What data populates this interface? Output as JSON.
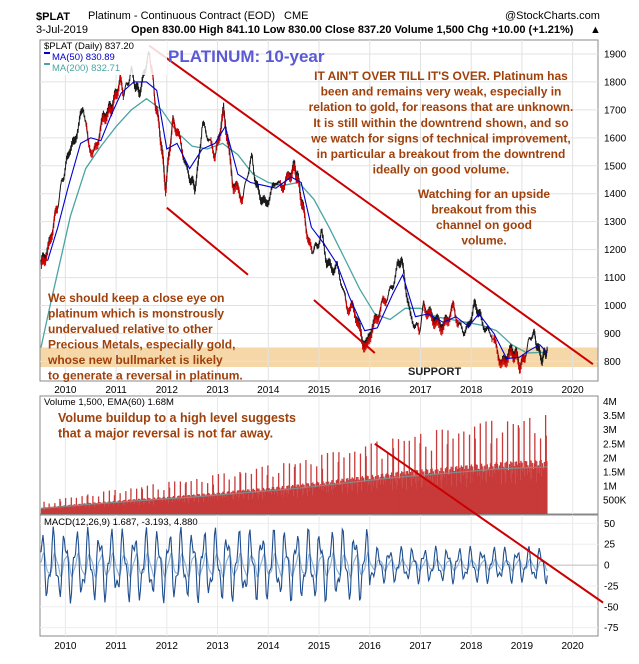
{
  "header": {
    "ticker": "$PLAT",
    "name": "Platinum - Continuous Contract (EOD)",
    "exchange": "CME",
    "watermark": "@StockCharts.com",
    "date": "3-Jul-2019",
    "quote_line": "Open 830.00  High 841.10  Low 830.00  Close 837.20  Volume 1,500  Chg +10.00 (+1.21%)",
    "up_arrow": "▲"
  },
  "price_panel": {
    "legend": [
      "$PLAT (Daily) 837.20",
      "MA(50) 830.89",
      "MA(200) 832.71"
    ],
    "title": "PLATINUM: 10-year",
    "support_label": "SUPPORT",
    "note_top": [
      "IT AIN'T OVER TILL IT'S OVER. Platinum has",
      "been and remains very weak, especially in",
      "relation to gold, for reasons that are unknown.",
      "It is still within the downtrend shown, and so",
      "we watch for signs of technical improvement,",
      "in particular a breakout from the downtrend",
      "ideally on good volume."
    ],
    "note_mid": [
      "Watching for an upside",
      "breakout from this",
      "channel on good",
      "volume."
    ],
    "note_left": [
      "We should keep a close eye on",
      "platinum which is monstrously",
      "undervalued relative to other",
      "Precious Metals, especially gold,",
      "whose new bullmarket is likely",
      "to generate a reversal in platinum."
    ]
  },
  "volume_panel": {
    "legend": "Volume 1,500, EMA(60) 1.68M",
    "note": [
      "Volume buildup to a high level suggests",
      "that a major reversal is not far away."
    ]
  },
  "macd_panel": {
    "legend": "MACD(12,26,9) 1.687, -3.193, 4.880"
  },
  "colors": {
    "price_up": "#1a1a1a",
    "price_down": "#cc0000",
    "ma50": "#0000cc",
    "ma200": "#4aa4a4",
    "trendline": "#cc0000",
    "support_band": "#f6d7a8",
    "volume": "#c83a3a",
    "volume_ema": "#888888",
    "macd": "#1f4f8f",
    "macd_signal": "#8fb3d9",
    "annotation": "#a0400a",
    "title": "#5a5ad6"
  },
  "chart_data": {
    "type": "line",
    "x_axis": {
      "ticks": [
        "2010",
        "2011",
        "2012",
        "2013",
        "2014",
        "2015",
        "2016",
        "2017",
        "2018",
        "2019",
        "2020"
      ],
      "range": [
        2009.5,
        2020.5
      ]
    },
    "price": {
      "name": "$PLAT (Daily)",
      "ylim": [
        730,
        1950
      ],
      "yticks": [
        800,
        900,
        1000,
        1100,
        1200,
        1300,
        1400,
        1500,
        1600,
        1700,
        1800,
        1900
      ],
      "series": [
        [
          2009.52,
          1150
        ],
        [
          2009.6,
          1180
        ],
        [
          2009.7,
          1230
        ],
        [
          2009.78,
          1310
        ],
        [
          2009.85,
          1360
        ],
        [
          2009.93,
          1440
        ],
        [
          2010.0,
          1490
        ],
        [
          2010.08,
          1560
        ],
        [
          2010.17,
          1580
        ],
        [
          2010.27,
          1650
        ],
        [
          2010.35,
          1720
        ],
        [
          2010.45,
          1580
        ],
        [
          2010.55,
          1540
        ],
        [
          2010.65,
          1600
        ],
        [
          2010.75,
          1680
        ],
        [
          2010.85,
          1700
        ],
        [
          2010.92,
          1720
        ],
        [
          2011.0,
          1760
        ],
        [
          2011.08,
          1810
        ],
        [
          2011.15,
          1760
        ],
        [
          2011.22,
          1790
        ],
        [
          2011.3,
          1840
        ],
        [
          2011.38,
          1790
        ],
        [
          2011.45,
          1760
        ],
        [
          2011.52,
          1800
        ],
        [
          2011.6,
          1870
        ],
        [
          2011.66,
          1900
        ],
        [
          2011.72,
          1820
        ],
        [
          2011.78,
          1720
        ],
        [
          2011.85,
          1650
        ],
        [
          2011.92,
          1530
        ],
        [
          2011.98,
          1420
        ],
        [
          2012.05,
          1560
        ],
        [
          2012.12,
          1660
        ],
        [
          2012.2,
          1630
        ],
        [
          2012.3,
          1560
        ],
        [
          2012.4,
          1480
        ],
        [
          2012.48,
          1450
        ],
        [
          2012.55,
          1420
        ],
        [
          2012.62,
          1500
        ],
        [
          2012.7,
          1650
        ],
        [
          2012.78,
          1620
        ],
        [
          2012.88,
          1570
        ],
        [
          2012.96,
          1540
        ],
        [
          2013.04,
          1620
        ],
        [
          2013.12,
          1700
        ],
        [
          2013.2,
          1600
        ],
        [
          2013.3,
          1440
        ],
        [
          2013.4,
          1420
        ],
        [
          2013.5,
          1380
        ],
        [
          2013.6,
          1480
        ],
        [
          2013.68,
          1530
        ],
        [
          2013.76,
          1430
        ],
        [
          2013.85,
          1390
        ],
        [
          2013.95,
          1360
        ],
        [
          2014.05,
          1400
        ],
        [
          2014.15,
          1450
        ],
        [
          2014.25,
          1420
        ],
        [
          2014.35,
          1450
        ],
        [
          2014.45,
          1480
        ],
        [
          2014.52,
          1500
        ],
        [
          2014.58,
          1460
        ],
        [
          2014.65,
          1390
        ],
        [
          2014.72,
          1320
        ],
        [
          2014.8,
          1220
        ],
        [
          2014.88,
          1200
        ],
        [
          2014.96,
          1210
        ],
        [
          2015.05,
          1260
        ],
        [
          2015.15,
          1160
        ],
        [
          2015.25,
          1130
        ],
        [
          2015.35,
          1140
        ],
        [
          2015.45,
          1080
        ],
        [
          2015.55,
          990
        ],
        [
          2015.65,
          1000
        ],
        [
          2015.75,
          960
        ],
        [
          2015.85,
          880
        ],
        [
          2015.95,
          860
        ],
        [
          2016.05,
          930
        ],
        [
          2016.15,
          960
        ],
        [
          2016.25,
          1010
        ],
        [
          2016.35,
          1030
        ],
        [
          2016.45,
          1070
        ],
        [
          2016.55,
          1140
        ],
        [
          2016.62,
          1170
        ],
        [
          2016.7,
          1080
        ],
        [
          2016.8,
          960
        ],
        [
          2016.9,
          930
        ],
        [
          2016.98,
          910
        ],
        [
          2017.06,
          1000
        ],
        [
          2017.15,
          980
        ],
        [
          2017.25,
          960
        ],
        [
          2017.35,
          940
        ],
        [
          2017.45,
          930
        ],
        [
          2017.55,
          960
        ],
        [
          2017.65,
          1000
        ],
        [
          2017.75,
          930
        ],
        [
          2017.85,
          910
        ],
        [
          2017.95,
          920
        ],
        [
          2018.05,
          1000
        ],
        [
          2018.12,
          990
        ],
        [
          2018.2,
          950
        ],
        [
          2018.3,
          910
        ],
        [
          2018.4,
          900
        ],
        [
          2018.5,
          850
        ],
        [
          2018.6,
          790
        ],
        [
          2018.7,
          820
        ],
        [
          2018.8,
          840
        ],
        [
          2018.88,
          830
        ],
        [
          2018.96,
          790
        ],
        [
          2019.04,
          810
        ],
        [
          2019.12,
          860
        ],
        [
          2019.2,
          900
        ],
        [
          2019.26,
          890
        ],
        [
          2019.32,
          840
        ],
        [
          2019.4,
          810
        ],
        [
          2019.46,
          830
        ],
        [
          2019.5,
          837
        ]
      ]
    },
    "ma50": {
      "name": "MA(50)",
      "series": [
        [
          2009.65,
          1160
        ],
        [
          2009.85,
          1280
        ],
        [
          2010.05,
          1420
        ],
        [
          2010.3,
          1580
        ],
        [
          2010.5,
          1600
        ],
        [
          2010.7,
          1590
        ],
        [
          2010.9,
          1680
        ],
        [
          2011.1,
          1760
        ],
        [
          2011.35,
          1800
        ],
        [
          2011.6,
          1800
        ],
        [
          2011.8,
          1770
        ],
        [
          2012.0,
          1560
        ],
        [
          2012.2,
          1580
        ],
        [
          2012.45,
          1490
        ],
        [
          2012.7,
          1560
        ],
        [
          2012.95,
          1580
        ],
        [
          2013.15,
          1640
        ],
        [
          2013.4,
          1470
        ],
        [
          2013.65,
          1440
        ],
        [
          2013.9,
          1430
        ],
        [
          2014.15,
          1420
        ],
        [
          2014.45,
          1460
        ],
        [
          2014.65,
          1440
        ],
        [
          2014.85,
          1280
        ],
        [
          2015.1,
          1220
        ],
        [
          2015.35,
          1150
        ],
        [
          2015.6,
          1030
        ],
        [
          2015.9,
          910
        ],
        [
          2016.15,
          920
        ],
        [
          2016.45,
          1040
        ],
        [
          2016.65,
          1110
        ],
        [
          2016.9,
          960
        ],
        [
          2017.15,
          970
        ],
        [
          2017.45,
          940
        ],
        [
          2017.7,
          960
        ],
        [
          2017.95,
          925
        ],
        [
          2018.15,
          970
        ],
        [
          2018.45,
          900
        ],
        [
          2018.7,
          810
        ],
        [
          2018.95,
          815
        ],
        [
          2019.15,
          840
        ],
        [
          2019.35,
          860
        ],
        [
          2019.5,
          831
        ]
      ]
    },
    "ma200": {
      "name": "MA(200)",
      "series": [
        [
          2009.52,
          850
        ],
        [
          2009.7,
          1000
        ],
        [
          2009.9,
          1160
        ],
        [
          2010.1,
          1320
        ],
        [
          2010.4,
          1490
        ],
        [
          2010.7,
          1570
        ],
        [
          2011.0,
          1640
        ],
        [
          2011.3,
          1700
        ],
        [
          2011.6,
          1740
        ],
        [
          2011.9,
          1700
        ],
        [
          2012.2,
          1620
        ],
        [
          2012.5,
          1570
        ],
        [
          2012.8,
          1560
        ],
        [
          2013.1,
          1580
        ],
        [
          2013.4,
          1540
        ],
        [
          2013.7,
          1470
        ],
        [
          2014.0,
          1440
        ],
        [
          2014.3,
          1430
        ],
        [
          2014.6,
          1440
        ],
        [
          2014.9,
          1380
        ],
        [
          2015.2,
          1280
        ],
        [
          2015.5,
          1170
        ],
        [
          2015.8,
          1060
        ],
        [
          2016.1,
          970
        ],
        [
          2016.4,
          950
        ],
        [
          2016.7,
          990
        ],
        [
          2017.0,
          990
        ],
        [
          2017.3,
          960
        ],
        [
          2017.6,
          950
        ],
        [
          2017.9,
          940
        ],
        [
          2018.2,
          930
        ],
        [
          2018.5,
          910
        ],
        [
          2018.8,
          860
        ],
        [
          2019.1,
          830
        ],
        [
          2019.5,
          833
        ]
      ]
    },
    "trendlines": [
      {
        "name": "downtrend upper",
        "from": [
          2011.65,
          1930
        ],
        "to": [
          2020.4,
          790
        ]
      },
      {
        "name": "channel lower",
        "from": [
          2012.0,
          1350
        ],
        "to": [
          2013.6,
          1110
        ]
      },
      {
        "name": "channel lower",
        "from": [
          2014.9,
          1020
        ],
        "to": [
          2016.1,
          830
        ]
      }
    ],
    "support_band": [
      780,
      850
    ],
    "volume": {
      "name": "Volume",
      "ylim": [
        0,
        4200000
      ],
      "yticks": [
        {
          "v": 500000,
          "label": "500K"
        },
        {
          "v": 1000000,
          "label": "1M"
        },
        {
          "v": 1500000,
          "label": "1.5M"
        },
        {
          "v": 2000000,
          "label": "2M"
        },
        {
          "v": 2500000,
          "label": "2.5M"
        },
        {
          "v": 3000000,
          "label": "3M"
        },
        {
          "v": 3500000,
          "label": "3.5M"
        },
        {
          "v": 4000000,
          "label": "4M"
        }
      ],
      "ema60": [
        [
          2009.52,
          200000
        ],
        [
          2010.5,
          350000
        ],
        [
          2011.5,
          480000
        ],
        [
          2012.5,
          600000
        ],
        [
          2013.5,
          750000
        ],
        [
          2014.5,
          900000
        ],
        [
          2015.5,
          1100000
        ],
        [
          2016.5,
          1300000
        ],
        [
          2017.5,
          1450000
        ],
        [
          2018.5,
          1600000
        ],
        [
          2019.5,
          1680000
        ]
      ]
    },
    "macd": {
      "name": "MACD(12,26,9)",
      "ylim": [
        -85,
        60
      ],
      "yticks": [
        -75,
        -50,
        -25,
        0,
        25,
        50
      ]
    },
    "extended_trendline": {
      "from": [
        2016.1,
        2500000
      ],
      "to": [
        2020.6,
        -45
      ]
    }
  }
}
